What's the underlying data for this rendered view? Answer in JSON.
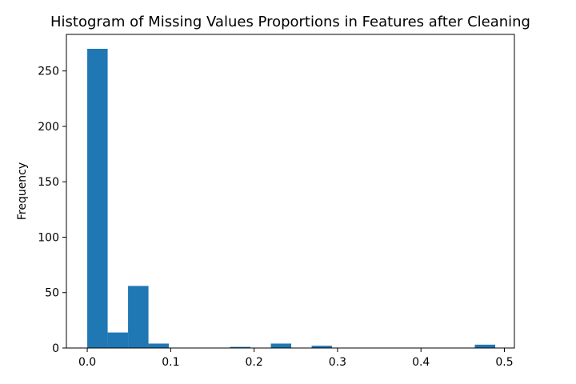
{
  "chart_data": {
    "type": "bar",
    "title": "Histogram of Missing Values Proportions in Features after Cleaning",
    "xlabel": "",
    "ylabel": "Frequency",
    "xlim": [
      -0.025,
      0.512
    ],
    "ylim": [
      0,
      283
    ],
    "bin_width": 0.02445,
    "bins": [
      {
        "x0": 0.0,
        "value": 270
      },
      {
        "x0": 0.02445,
        "value": 14
      },
      {
        "x0": 0.0489,
        "value": 56
      },
      {
        "x0": 0.07335,
        "value": 4
      },
      {
        "x0": 0.0978,
        "value": 0
      },
      {
        "x0": 0.12225,
        "value": 0
      },
      {
        "x0": 0.1467,
        "value": 0
      },
      {
        "x0": 0.17115,
        "value": 1
      },
      {
        "x0": 0.1956,
        "value": 0
      },
      {
        "x0": 0.22005,
        "value": 4
      },
      {
        "x0": 0.2445,
        "value": 0
      },
      {
        "x0": 0.26895,
        "value": 2
      },
      {
        "x0": 0.2934,
        "value": 0
      },
      {
        "x0": 0.31785,
        "value": 0
      },
      {
        "x0": 0.3423,
        "value": 0
      },
      {
        "x0": 0.36675,
        "value": 0
      },
      {
        "x0": 0.3912,
        "value": 0
      },
      {
        "x0": 0.41565,
        "value": 0
      },
      {
        "x0": 0.4401,
        "value": 0
      },
      {
        "x0": 0.46455,
        "value": 3
      }
    ],
    "x_ticks": [
      0.0,
      0.1,
      0.2,
      0.3,
      0.4,
      0.5
    ],
    "x_tick_labels": [
      "0.0",
      "0.1",
      "0.2",
      "0.3",
      "0.4",
      "0.5"
    ],
    "y_ticks": [
      0,
      50,
      100,
      150,
      200,
      250
    ],
    "y_tick_labels": [
      "0",
      "50",
      "100",
      "150",
      "200",
      "250"
    ],
    "bar_color": "#1f77b4",
    "grid": false,
    "legend": "none"
  }
}
